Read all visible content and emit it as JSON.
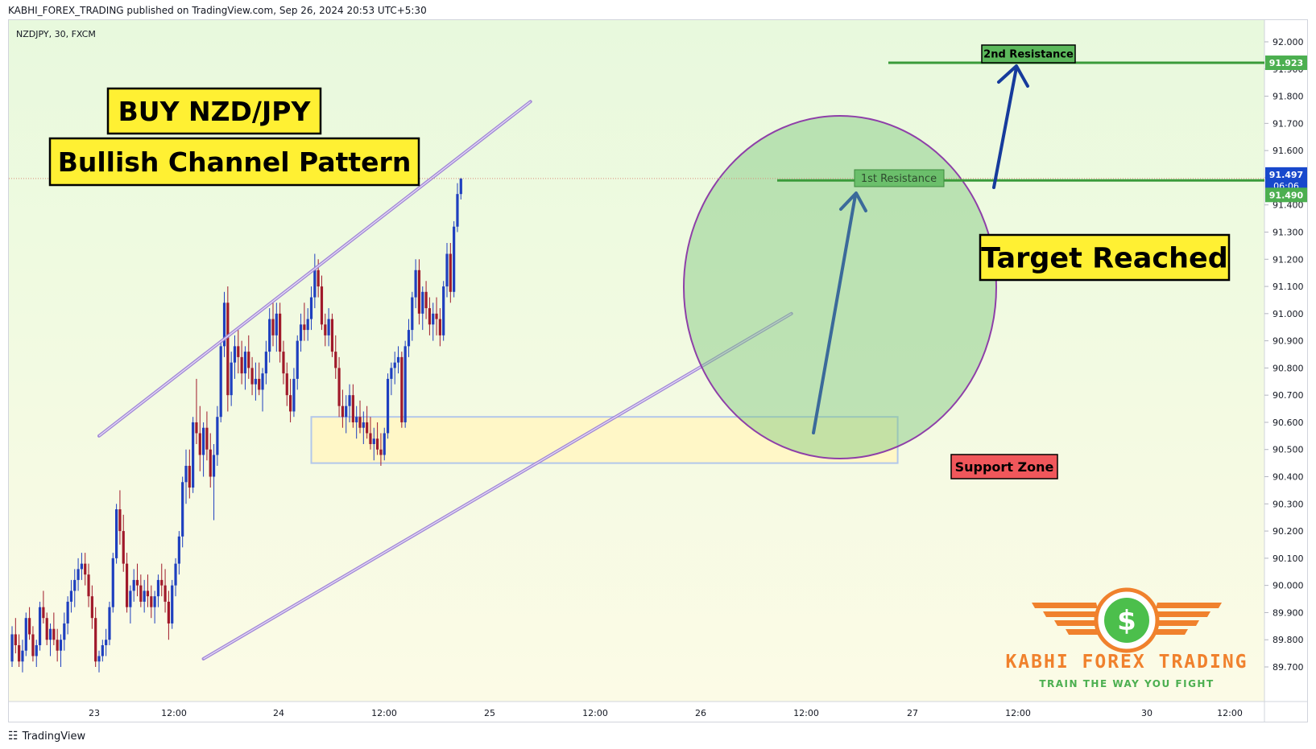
{
  "header": {
    "published_by": "KABHI_FOREX_TRADING published on TradingView.com, Sep 26, 2024 20:53 UTC+5:30",
    "symbol_info": "NZDJPY, 30, FXCM"
  },
  "footer": {
    "logo_icon": "tradingview-logo-icon",
    "brand": "TradingView"
  },
  "annotations": {
    "title": "BUY NZD/JPY",
    "subtitle": "Bullish Channel Pattern",
    "target": "Target Reached",
    "first_resistance": "1st Resistance",
    "second_resistance": "2nd Resistance",
    "support_zone": "Support Zone"
  },
  "price_tags": {
    "second_resistance": "91.923",
    "last_price": "91.497",
    "countdown": "06:06",
    "first_resistance": "91.490"
  },
  "watermark": {
    "brand": "KABHI FOREX TRADING",
    "slogan": "TRAIN THE WAY YOU FIGHT",
    "icon": "dollar-coin-wings-icon",
    "symbol": "$"
  },
  "colors": {
    "up": "#1e3fbf",
    "down": "#a0192a",
    "channel": "#9b7fd6",
    "resistance": "#3a9b3a",
    "label_yellow": "#fff033",
    "circle_fill": "#7dc67d",
    "circle_stroke": "#8e3fa8",
    "support_fill": "#fff7c7",
    "support_red": "#f0575b",
    "last_price_tag": "#1848cc",
    "orange": "#f0812d",
    "green_text": "#4caf50"
  },
  "chart_data": {
    "type": "candlestick",
    "symbol": "NZDJPY",
    "timeframe": "30",
    "source": "FXCM",
    "ylim": [
      89.7,
      92.05
    ],
    "y_ticks": [
      "92.000",
      "91.900",
      "91.800",
      "91.700",
      "91.600",
      "91.500",
      "91.400",
      "91.300",
      "91.200",
      "91.100",
      "91.000",
      "90.900",
      "90.800",
      "90.700",
      "90.600",
      "90.500",
      "90.400",
      "90.300",
      "90.200",
      "90.100",
      "90.000",
      "89.900",
      "89.800",
      "89.700"
    ],
    "x_ticks": [
      "23",
      "12:00",
      "24",
      "12:00",
      "25",
      "12:00",
      "26",
      "12:00",
      "27",
      "12:00",
      "30",
      "12:00"
    ],
    "levels": {
      "first_resistance": 91.49,
      "second_resistance": 91.923,
      "last_price": 91.497
    },
    "channel": {
      "upper": [
        {
          "x": 0,
          "y": 90.55
        },
        {
          "x": 124,
          "y": 91.78
        }
      ],
      "lower": [
        {
          "x": 30,
          "y": 89.73
        },
        {
          "x": 199,
          "y": 91.0
        }
      ]
    },
    "support_zone": {
      "x_from": 86,
      "x_to": 155,
      "y_from": 90.45,
      "y_to": 90.62
    },
    "candles": [
      [
        89.72,
        89.85,
        89.7,
        89.82
      ],
      [
        89.82,
        89.88,
        89.75,
        89.78
      ],
      [
        89.78,
        89.82,
        89.7,
        89.72
      ],
      [
        89.72,
        89.8,
        89.68,
        89.76
      ],
      [
        89.76,
        89.9,
        89.74,
        89.88
      ],
      [
        89.88,
        89.92,
        89.8,
        89.82
      ],
      [
        89.82,
        89.85,
        89.72,
        89.74
      ],
      [
        89.74,
        89.8,
        89.7,
        89.78
      ],
      [
        89.78,
        89.94,
        89.76,
        89.92
      ],
      [
        89.92,
        89.98,
        89.86,
        89.88
      ],
      [
        89.88,
        89.9,
        89.78,
        89.8
      ],
      [
        89.8,
        89.86,
        89.74,
        89.84
      ],
      [
        89.84,
        89.9,
        89.78,
        89.8
      ],
      [
        89.8,
        89.84,
        89.72,
        89.76
      ],
      [
        89.76,
        89.82,
        89.7,
        89.8
      ],
      [
        89.8,
        89.9,
        89.76,
        89.86
      ],
      [
        89.86,
        89.96,
        89.82,
        89.94
      ],
      [
        89.94,
        90.02,
        89.9,
        89.98
      ],
      [
        89.98,
        90.06,
        89.92,
        90.02
      ],
      [
        90.02,
        90.1,
        89.98,
        90.06
      ],
      [
        90.06,
        90.12,
        90.02,
        90.08
      ],
      [
        90.08,
        90.12,
        90.0,
        90.04
      ],
      [
        90.04,
        90.08,
        89.92,
        89.96
      ],
      [
        89.96,
        90.0,
        89.84,
        89.88
      ],
      [
        89.88,
        89.92,
        89.7,
        89.72
      ],
      [
        89.72,
        89.76,
        89.68,
        89.74
      ],
      [
        89.74,
        89.8,
        89.72,
        89.78
      ],
      [
        89.78,
        89.84,
        89.74,
        89.8
      ],
      [
        89.8,
        89.94,
        89.78,
        89.92
      ],
      [
        89.92,
        90.12,
        89.9,
        90.1
      ],
      [
        90.1,
        90.3,
        90.08,
        90.28
      ],
      [
        90.28,
        90.35,
        90.15,
        90.2
      ],
      [
        90.2,
        90.26,
        90.05,
        90.08
      ],
      [
        90.08,
        90.12,
        89.9,
        89.92
      ],
      [
        89.92,
        90.0,
        89.86,
        89.98
      ],
      [
        89.98,
        90.06,
        89.94,
        90.02
      ],
      [
        90.02,
        90.08,
        89.96,
        90.0
      ],
      [
        90.0,
        90.04,
        89.92,
        89.94
      ],
      [
        89.94,
        90.02,
        89.9,
        89.98
      ],
      [
        89.98,
        90.04,
        89.92,
        89.96
      ],
      [
        89.96,
        90.0,
        89.88,
        89.92
      ],
      [
        89.92,
        89.98,
        89.86,
        89.96
      ],
      [
        89.96,
        90.04,
        89.92,
        90.02
      ],
      [
        90.02,
        90.08,
        89.96,
        90.0
      ],
      [
        90.0,
        90.06,
        89.9,
        89.94
      ],
      [
        89.94,
        89.98,
        89.8,
        89.86
      ],
      [
        89.86,
        90.02,
        89.84,
        90.0
      ],
      [
        90.0,
        90.1,
        89.96,
        90.08
      ],
      [
        90.08,
        90.2,
        90.04,
        90.18
      ],
      [
        90.18,
        90.4,
        90.14,
        90.38
      ],
      [
        90.38,
        90.5,
        90.3,
        90.44
      ],
      [
        90.44,
        90.5,
        90.32,
        90.36
      ],
      [
        90.36,
        90.62,
        90.34,
        90.6
      ],
      [
        90.6,
        90.76,
        90.52,
        90.56
      ],
      [
        90.56,
        90.66,
        90.42,
        90.48
      ],
      [
        90.48,
        90.6,
        90.4,
        90.58
      ],
      [
        90.58,
        90.64,
        90.46,
        90.5
      ],
      [
        90.5,
        90.56,
        90.36,
        90.4
      ],
      [
        90.4,
        90.52,
        90.24,
        90.48
      ],
      [
        90.48,
        90.66,
        90.44,
        90.62
      ],
      [
        90.62,
        90.9,
        90.6,
        90.88
      ],
      [
        90.88,
        91.08,
        90.84,
        91.04
      ],
      [
        91.04,
        91.1,
        90.64,
        90.7
      ],
      [
        90.7,
        90.86,
        90.66,
        90.82
      ],
      [
        90.82,
        90.92,
        90.76,
        90.88
      ],
      [
        90.88,
        90.94,
        90.78,
        90.84
      ],
      [
        90.84,
        90.9,
        90.74,
        90.78
      ],
      [
        90.78,
        90.88,
        90.72,
        90.86
      ],
      [
        90.86,
        90.92,
        90.76,
        90.8
      ],
      [
        90.8,
        90.84,
        90.7,
        90.74
      ],
      [
        90.74,
        90.82,
        90.68,
        90.76
      ],
      [
        90.76,
        90.82,
        90.7,
        90.72
      ],
      [
        90.72,
        90.8,
        90.64,
        90.78
      ],
      [
        90.78,
        90.9,
        90.74,
        90.86
      ],
      [
        90.86,
        91.02,
        90.82,
        90.98
      ],
      [
        90.98,
        91.04,
        90.88,
        90.92
      ],
      [
        90.92,
        91.04,
        90.86,
        91.0
      ],
      [
        91.0,
        91.04,
        90.82,
        90.86
      ],
      [
        90.86,
        90.9,
        90.74,
        90.78
      ],
      [
        90.78,
        90.82,
        90.66,
        90.7
      ],
      [
        90.7,
        90.76,
        90.6,
        90.64
      ],
      [
        90.64,
        90.8,
        90.62,
        90.76
      ],
      [
        90.76,
        90.92,
        90.72,
        90.9
      ],
      [
        90.9,
        91.0,
        90.86,
        90.96
      ],
      [
        90.96,
        91.04,
        90.9,
        90.94
      ],
      [
        90.94,
        91.02,
        90.9,
        90.98
      ],
      [
        90.98,
        91.1,
        90.94,
        91.06
      ],
      [
        91.06,
        91.22,
        91.02,
        91.16
      ],
      [
        91.16,
        91.2,
        91.06,
        91.1
      ],
      [
        91.1,
        91.14,
        90.94,
        90.96
      ],
      [
        90.96,
        91.0,
        90.88,
        90.92
      ],
      [
        90.92,
        91.02,
        90.88,
        90.98
      ],
      [
        90.98,
        91.0,
        90.84,
        90.86
      ],
      [
        90.86,
        90.92,
        90.76,
        90.8
      ],
      [
        90.8,
        90.84,
        90.62,
        90.66
      ],
      [
        90.66,
        90.72,
        90.58,
        90.62
      ],
      [
        90.62,
        90.7,
        90.56,
        90.66
      ],
      [
        90.66,
        90.74,
        90.6,
        90.7
      ],
      [
        90.7,
        90.74,
        90.58,
        90.6
      ],
      [
        90.6,
        90.66,
        90.54,
        90.62
      ],
      [
        90.62,
        90.68,
        90.56,
        90.58
      ],
      [
        90.58,
        90.64,
        90.52,
        90.6
      ],
      [
        90.6,
        90.66,
        90.54,
        90.56
      ],
      [
        90.56,
        90.62,
        90.5,
        90.52
      ],
      [
        90.52,
        90.58,
        90.46,
        90.54
      ],
      [
        90.54,
        90.6,
        90.48,
        90.5
      ],
      [
        90.5,
        90.56,
        90.44,
        90.48
      ],
      [
        90.48,
        90.58,
        90.46,
        90.56
      ],
      [
        90.56,
        90.78,
        90.54,
        90.76
      ],
      [
        90.76,
        90.82,
        90.7,
        90.8
      ],
      [
        90.8,
        90.86,
        90.74,
        90.82
      ],
      [
        90.82,
        90.88,
        90.78,
        90.84
      ],
      [
        90.84,
        90.86,
        90.58,
        90.6
      ],
      [
        90.6,
        90.9,
        90.58,
        90.88
      ],
      [
        90.88,
        90.98,
        90.84,
        90.94
      ],
      [
        90.94,
        91.08,
        90.9,
        91.06
      ],
      [
        91.06,
        91.2,
        91.02,
        91.16
      ],
      [
        91.16,
        91.2,
        90.96,
        91.0
      ],
      [
        91.0,
        91.1,
        90.94,
        91.08
      ],
      [
        91.08,
        91.12,
        90.98,
        91.02
      ],
      [
        91.02,
        91.06,
        90.92,
        90.96
      ],
      [
        90.96,
        91.04,
        90.9,
        91.0
      ],
      [
        91.0,
        91.06,
        90.92,
        90.98
      ],
      [
        90.98,
        91.02,
        90.88,
        90.92
      ],
      [
        90.92,
        91.12,
        90.9,
        91.1
      ],
      [
        91.1,
        91.26,
        91.06,
        91.22
      ],
      [
        91.22,
        91.26,
        91.04,
        91.08
      ],
      [
        91.08,
        91.34,
        91.06,
        91.32
      ],
      [
        91.32,
        91.48,
        91.3,
        91.44
      ],
      [
        91.44,
        91.5,
        91.42,
        91.497
      ]
    ]
  }
}
